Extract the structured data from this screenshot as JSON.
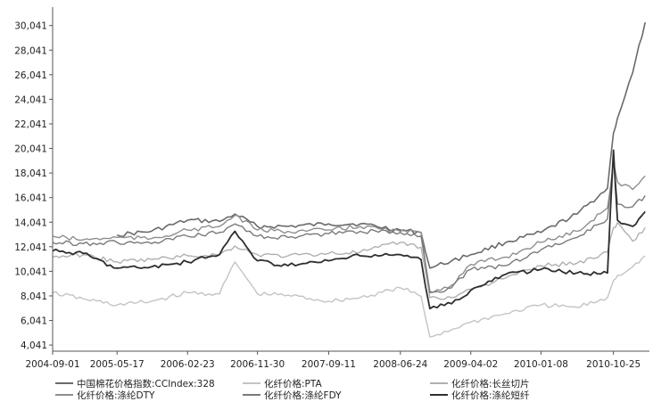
{
  "chart_data": {
    "type": "line",
    "title": "",
    "xlabel": "",
    "ylabel": "",
    "grid": false,
    "legend_position": "bottom",
    "ylim": [
      3541,
      31541
    ],
    "yticks": [
      "4,041",
      "6,041",
      "8,041",
      "10,041",
      "12,041",
      "14,041",
      "16,041",
      "18,041",
      "20,041",
      "22,041",
      "24,041",
      "26,041",
      "28,041",
      "30,041"
    ],
    "xticks": [
      "2004-09-01",
      "2005-05-17",
      "2006-02-23",
      "2006-11-30",
      "2007-09-11",
      "2008-06-24",
      "2009-04-02",
      "2010-01-08",
      "2010-10-25"
    ],
    "x": [
      "2004-09-01",
      "2005-01-01",
      "2005-05-17",
      "2005-10-01",
      "2006-02-23",
      "2006-07-01",
      "2006-09-01",
      "2006-11-30",
      "2007-04-01",
      "2007-09-11",
      "2008-01-15",
      "2008-06-24",
      "2008-09-15",
      "2008-10-20",
      "2009-01-15",
      "2009-04-02",
      "2009-08-20",
      "2010-01-08",
      "2010-06-01",
      "2010-10-01",
      "2010-10-25",
      "2010-11-10",
      "2011-01-10",
      "2011-03-01"
    ],
    "series": [
      {
        "name": "中国棉花价格指数:CCIndex:328",
        "color": "#6a6a6a",
        "width": 1.6,
        "values": [
          null,
          null,
          13000,
          13300,
          14200,
          14100,
          14700,
          13700,
          13700,
          13900,
          13900,
          13400,
          13200,
          10300,
          10900,
          11400,
          12400,
          13200,
          14700,
          16800,
          21300,
          22500,
          26200,
          30300
        ]
      },
      {
        "name": "化纤价格:PTA",
        "color": "#c4c4c4",
        "width": 1.4,
        "values": [
          8300,
          7800,
          7300,
          7600,
          8300,
          8200,
          10800,
          8200,
          8100,
          7600,
          7900,
          8700,
          8000,
          4700,
          5300,
          5900,
          6600,
          7300,
          7100,
          7900,
          9300,
          9700,
          10400,
          11300
        ]
      },
      {
        "name": "化纤价格:长丝切片",
        "color": "#b0b0b0",
        "width": 1.4,
        "values": [
          11200,
          11400,
          10800,
          11000,
          11300,
          11400,
          12100,
          11400,
          11300,
          11500,
          11600,
          12400,
          12000,
          7900,
          7900,
          8600,
          9500,
          10500,
          10700,
          11600,
          13600,
          14000,
          12500,
          13600
        ]
      },
      {
        "name": "化纤价格:涤纶DTY",
        "color": "#8e8e8e",
        "width": 1.4,
        "values": [
          12900,
          12600,
          12800,
          12700,
          13400,
          13700,
          14600,
          13400,
          13300,
          13400,
          13700,
          13300,
          13200,
          8400,
          8900,
          10600,
          11200,
          12400,
          13300,
          15200,
          18800,
          17300,
          16700,
          17800
        ]
      },
      {
        "name": "化纤价格:涤纶FDY",
        "color": "#7a7a7a",
        "width": 1.4,
        "values": [
          12400,
          12300,
          12400,
          12300,
          12900,
          13200,
          13900,
          12900,
          12800,
          13100,
          13300,
          13200,
          12900,
          8300,
          8700,
          10200,
          10500,
          11800,
          12800,
          14300,
          19200,
          15500,
          15300,
          16200
        ]
      },
      {
        "name": "化纤价格:涤纶短纤",
        "color": "#2e2e2e",
        "width": 1.8,
        "values": [
          11700,
          11500,
          10300,
          10400,
          10800,
          11400,
          13300,
          10900,
          10500,
          10900,
          11300,
          11400,
          11000,
          7000,
          7400,
          8500,
          9800,
          10200,
          9900,
          9900,
          19900,
          14200,
          13700,
          14900
        ]
      }
    ]
  }
}
